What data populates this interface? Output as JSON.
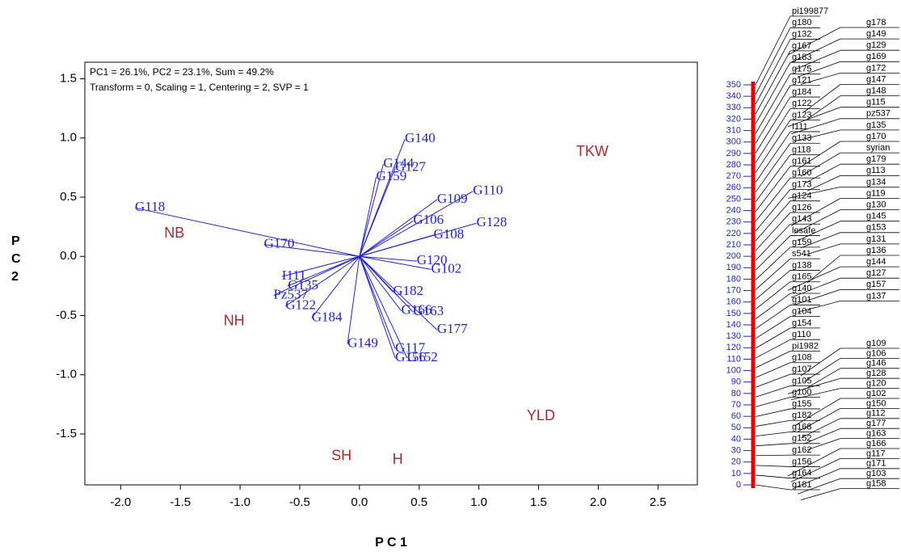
{
  "chart_data": [
    {
      "type": "biplot",
      "annotations": [
        "PC1 = 26.1%, PC2 = 23.1%, Sum = 49.2%",
        "Transform = 0, Scaling = 1, Centering = 2, SVP = 1"
      ],
      "x_label": "P C 1",
      "y_label": "PC2",
      "xlim": [
        -2.3,
        2.83
      ],
      "ylim": [
        -1.93,
        1.64
      ],
      "xticks": [
        {
          "value": -2.0,
          "label": "-2.0"
        },
        -1.5,
        {
          "value": -1.0,
          "label": "-1.0"
        },
        -0.5,
        {
          "value": 0.0,
          "label": "0.0"
        },
        0.5,
        {
          "value": 1.0,
          "label": "1.0"
        },
        1.5,
        {
          "value": 2.0,
          "label": "2.0"
        },
        2.5
      ],
      "yticks": [
        {
          "value": -1.5,
          "label": "-1.5"
        },
        {
          "value": -1.0,
          "label": "-1.0"
        },
        -0.5,
        {
          "value": 0.0,
          "label": "0.0"
        },
        0.5,
        {
          "value": 1.0,
          "label": "1.0"
        },
        1.5
      ],
      "series": [
        {
          "name": "genotypes",
          "color": "#2222c8",
          "labels": [
            "G140",
            "G144",
            "G127",
            "G159",
            "G110",
            "G109",
            "G118",
            "G128",
            "G108",
            "G106",
            "G170",
            "G120",
            "G102",
            "G182",
            "I111",
            "G135",
            "Pz537",
            "G122",
            "G184",
            "G166",
            "G163",
            "G177",
            "G149",
            "G117",
            "G156",
            "G152"
          ],
          "x": [
            0.38,
            0.2,
            0.3,
            0.14,
            0.95,
            0.65,
            -1.88,
            0.98,
            0.62,
            0.45,
            -0.8,
            0.48,
            0.6,
            0.28,
            -0.65,
            -0.6,
            -0.72,
            -0.62,
            -0.4,
            0.35,
            0.45,
            0.65,
            -0.1,
            0.3,
            0.3,
            0.4
          ],
          "y": [
            0.99,
            0.78,
            0.75,
            0.67,
            0.55,
            0.48,
            0.41,
            0.28,
            0.18,
            0.3,
            0.1,
            -0.04,
            -0.11,
            -0.3,
            -0.17,
            -0.25,
            -0.33,
            -0.42,
            -0.52,
            -0.46,
            -0.47,
            -0.62,
            -0.74,
            -0.78,
            -0.86,
            -0.86
          ]
        },
        {
          "name": "traits",
          "color": "#a52a2a",
          "labels": [
            "TKW",
            "NB",
            "NH",
            "YLD",
            "SH",
            "H"
          ],
          "x": [
            1.95,
            -1.55,
            -1.05,
            1.52,
            -0.15,
            0.32
          ],
          "y": [
            0.88,
            0.19,
            -0.55,
            -1.35,
            -1.69,
            -1.72
          ]
        }
      ]
    },
    {
      "type": "dendrogram",
      "ylim": [
        0,
        350
      ],
      "yticks": [
        0,
        10,
        20,
        30,
        40,
        50,
        60,
        70,
        80,
        90,
        100,
        110,
        120,
        130,
        140,
        150,
        160,
        170,
        180,
        190,
        200,
        210,
        220,
        230,
        240,
        250,
        260,
        270,
        280,
        290,
        300,
        310,
        320,
        330,
        340,
        350
      ],
      "color": "#e00000",
      "left_labels": [
        "pi199877",
        "g180",
        "g132",
        "g167",
        "g183",
        "g175",
        "g121",
        "g184",
        "g122",
        "g123",
        "I111",
        "g133",
        "g118",
        "g161",
        "g160",
        "g173",
        "g124",
        "g126",
        "g143",
        "lesafe",
        "g159",
        "s541",
        "g138",
        "g165",
        "g140",
        "g101",
        "g104",
        "g154",
        "g110",
        "pi1982",
        "g108",
        "g107",
        "g105",
        "g100",
        "g155",
        "g182",
        "g168",
        "g152",
        "g162",
        "g156",
        "g164",
        "g181"
      ],
      "right_labels": [
        "g178",
        "g149",
        "g129",
        "g169",
        "g172",
        "g147",
        "g148",
        "g115",
        "pz537",
        "g135",
        "g170",
        "syrian",
        "g179",
        "g113",
        "g134",
        "g119",
        "g130",
        "g145",
        "g153",
        "g131",
        "g136",
        "g144",
        "g127",
        "g157",
        "g137",
        "g109",
        "g106",
        "g146",
        "g128",
        "g120",
        "g102",
        "g150",
        "g112",
        "g177",
        "g163",
        "g166",
        "g117",
        "g171",
        "g103",
        "g158"
      ]
    }
  ]
}
